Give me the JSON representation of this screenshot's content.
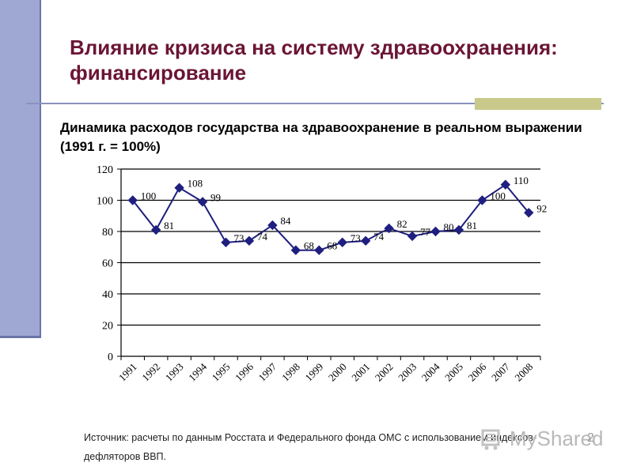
{
  "slide": {
    "title_line1": "Влияние кризиса на систему здравоохранения:",
    "title_line2": "финансирование",
    "subtitle": "Динамика расходов государства на здравоохранение в реальном выражении (1991 г. = 100%)",
    "source": "Источник: расчеты по данным Росстата и Федерального фонда ОМС с использованием индексов-дефляторов ВВП.",
    "page_number": "2",
    "watermark": "MyShared"
  },
  "colors": {
    "title": "#6b1535",
    "series": "#1f1f80",
    "side_bar": "#9fa8d3",
    "accent_bar": "#c9c98b",
    "divider": "#8a91bf"
  },
  "chart_data": {
    "type": "line",
    "categories": [
      "1991",
      "1992",
      "1993",
      "1994",
      "1995",
      "1996",
      "1997",
      "1998",
      "1999",
      "2000",
      "2001",
      "2002",
      "2003",
      "2004",
      "2005",
      "2006",
      "2007",
      "2008"
    ],
    "values": [
      100,
      81,
      108,
      99,
      73,
      74,
      84,
      68,
      68,
      73,
      74,
      82,
      77,
      80,
      81,
      100,
      110,
      92
    ],
    "y_ticks": [
      0,
      20,
      40,
      60,
      80,
      100,
      120
    ],
    "ylim": [
      0,
      120
    ],
    "grid": true,
    "marker": "diamond",
    "legend": "none"
  }
}
